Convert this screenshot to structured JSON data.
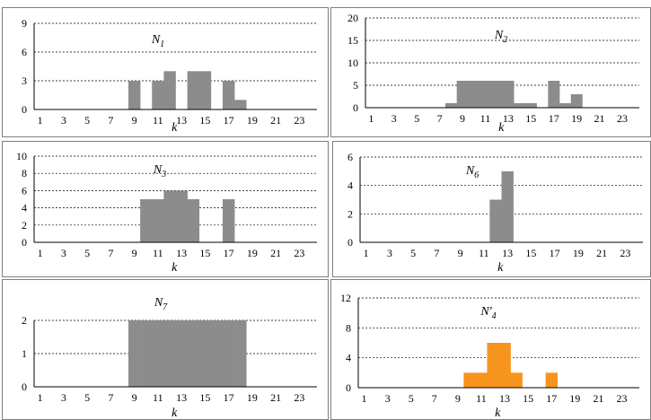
{
  "chart_data": [
    {
      "type": "bar",
      "title": "N",
      "title_sub": "1",
      "xlabel": "k",
      "x_tick_labels": [
        "1",
        "3",
        "5",
        "7",
        "9",
        "11",
        "13",
        "15",
        "17",
        "19",
        "21",
        "23"
      ],
      "x": [
        1,
        2,
        3,
        4,
        5,
        6,
        7,
        8,
        9,
        10,
        11,
        12,
        13,
        14,
        15,
        16,
        17,
        18,
        19,
        20,
        21,
        22,
        23,
        24
      ],
      "values": [
        0,
        0,
        0,
        0,
        0,
        0,
        0,
        0,
        3,
        0,
        3,
        4,
        0,
        4,
        4,
        0,
        3,
        1,
        0,
        0,
        0,
        0,
        0,
        0
      ],
      "ylim": [
        0,
        9
      ],
      "y_ticks": [
        0,
        3,
        6,
        9
      ],
      "grid": "horizontal dashed",
      "bar_color": "#8c8c8c"
    },
    {
      "type": "bar",
      "title": "N",
      "title_sub": "2",
      "xlabel": "k",
      "x_tick_labels": [
        "1",
        "3",
        "5",
        "7",
        "9",
        "11",
        "13",
        "15",
        "17",
        "19",
        "21",
        "23"
      ],
      "x": [
        1,
        2,
        3,
        4,
        5,
        6,
        7,
        8,
        9,
        10,
        11,
        12,
        13,
        14,
        15,
        16,
        17,
        18,
        19,
        20,
        21,
        22,
        23,
        24
      ],
      "values": [
        0,
        0,
        0,
        0,
        0,
        0,
        0,
        1,
        6,
        6,
        6,
        6,
        6,
        1,
        1,
        0,
        6,
        1,
        3,
        0,
        0,
        0,
        0,
        0
      ],
      "ylim": [
        0,
        20
      ],
      "y_ticks": [
        0,
        5,
        10,
        15,
        20
      ],
      "grid": "horizontal dashed",
      "bar_color": "#8c8c8c"
    },
    {
      "type": "bar",
      "title": "N",
      "title_sub": "3",
      "xlabel": "k",
      "x_tick_labels": [
        "1",
        "3",
        "5",
        "7",
        "9",
        "11",
        "13",
        "15",
        "17",
        "19",
        "21",
        "23"
      ],
      "x": [
        1,
        2,
        3,
        4,
        5,
        6,
        7,
        8,
        9,
        10,
        11,
        12,
        13,
        14,
        15,
        16,
        17,
        18,
        19,
        20,
        21,
        22,
        23,
        24
      ],
      "values": [
        0,
        0,
        0,
        0,
        0,
        0,
        0,
        0,
        0,
        5,
        5,
        6,
        6,
        5,
        0,
        0,
        5,
        0,
        0,
        0,
        0,
        0,
        0,
        0
      ],
      "ylim": [
        0,
        10
      ],
      "y_ticks": [
        0,
        2,
        4,
        6,
        8,
        10
      ],
      "grid": "horizontal dashed",
      "bar_color": "#8c8c8c"
    },
    {
      "type": "bar",
      "title": "N",
      "title_sub": "6",
      "xlabel": "k",
      "x_tick_labels": [
        "1",
        "3",
        "5",
        "7",
        "9",
        "11",
        "13",
        "15",
        "17",
        "19",
        "21",
        "23"
      ],
      "x": [
        1,
        2,
        3,
        4,
        5,
        6,
        7,
        8,
        9,
        10,
        11,
        12,
        13,
        14,
        15,
        16,
        17,
        18,
        19,
        20,
        21,
        22,
        23,
        24
      ],
      "values": [
        0,
        0,
        0,
        0,
        0,
        0,
        0,
        0,
        0,
        0,
        0,
        3,
        5,
        0,
        0,
        0,
        0,
        0,
        0,
        0,
        0,
        0,
        0,
        0
      ],
      "ylim": [
        0,
        6
      ],
      "y_ticks": [
        0,
        2,
        4,
        6
      ],
      "grid": "horizontal dashed",
      "bar_color": "#8c8c8c"
    },
    {
      "type": "bar",
      "title": "N",
      "title_sub": "7",
      "xlabel": "k",
      "x_tick_labels": [
        "1",
        "3",
        "5",
        "7",
        "9",
        "11",
        "13",
        "15",
        "17",
        "19",
        "21",
        "23"
      ],
      "x": [
        1,
        2,
        3,
        4,
        5,
        6,
        7,
        8,
        9,
        10,
        11,
        12,
        13,
        14,
        15,
        16,
        17,
        18,
        19,
        20,
        21,
        22,
        23,
        24
      ],
      "values": [
        0,
        0,
        0,
        0,
        0,
        0,
        0,
        0,
        2,
        2,
        2,
        2,
        2,
        2,
        2,
        2,
        2,
        2,
        0,
        0,
        0,
        0,
        0,
        0
      ],
      "ylim": [
        0,
        2
      ],
      "y_ticks": [
        0,
        1,
        2
      ],
      "grid": "horizontal dashed",
      "bar_color": "#8c8c8c"
    },
    {
      "type": "bar",
      "title": "N'",
      "title_sub": "4",
      "xlabel": "k",
      "x_tick_labels": [
        "1",
        "3",
        "5",
        "7",
        "9",
        "11",
        "13",
        "15",
        "17",
        "19",
        "21",
        "23"
      ],
      "x": [
        1,
        2,
        3,
        4,
        5,
        6,
        7,
        8,
        9,
        10,
        11,
        12,
        13,
        14,
        15,
        16,
        17,
        18,
        19,
        20,
        21,
        22,
        23,
        24
      ],
      "values": [
        0,
        0,
        0,
        0,
        0,
        0,
        0,
        0,
        0,
        2,
        2,
        6,
        6,
        2,
        0,
        0,
        2,
        0,
        0,
        0,
        0,
        0,
        0,
        0
      ],
      "ylim": [
        0,
        12
      ],
      "y_ticks": [
        0,
        4,
        8,
        12
      ],
      "grid": "horizontal dashed",
      "bar_color": "#f7941d"
    }
  ]
}
